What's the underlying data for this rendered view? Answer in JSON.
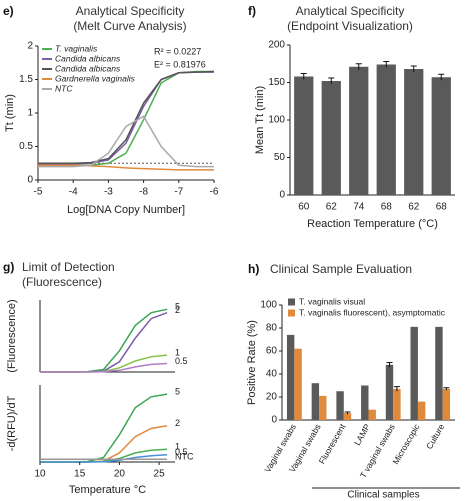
{
  "chart_data": [
    {
      "panel": "e)",
      "type": "line",
      "title": [
        "Analytical Specificity",
        "(Melt Curve Analysis)"
      ],
      "xlabel": "Log[DNA Copy Number]",
      "ylabel": "Tt (min)",
      "x": [
        0,
        0.5,
        1,
        1.5,
        2,
        2.5,
        3,
        3.5,
        4,
        4.5,
        5
      ],
      "xlim": [
        0,
        5
      ],
      "xticks": [
        {
          "value": 0,
          "label": "-5"
        },
        {
          "value": 1,
          "label": "-4"
        },
        {
          "value": 2,
          "label": "-3"
        },
        {
          "value": 3,
          "label": "-8"
        },
        {
          "value": 4,
          "label": "-7"
        },
        {
          "value": 5,
          "label": "-6"
        }
      ],
      "ylim": [
        0,
        2
      ],
      "yticks": [
        0,
        0.5,
        1,
        1.5,
        2
      ],
      "threshold": 0.25,
      "annotations": [
        "R² = 0.0227",
        "E² = 0.81976"
      ],
      "legend": "upper left",
      "series": [
        {
          "name": "T. vaginalis",
          "color": "#4caf50",
          "values": [
            0.22,
            0.22,
            0.22,
            0.22,
            0.25,
            0.4,
            0.9,
            1.45,
            1.6,
            1.62,
            1.62
          ]
        },
        {
          "name": "Candida albicans",
          "color": "#7b5ea7",
          "values": [
            0.24,
            0.24,
            0.24,
            0.25,
            0.3,
            0.55,
            1.1,
            1.5,
            1.6,
            1.61,
            1.61
          ]
        },
        {
          "name": "Candida albicans",
          "color": "#555555",
          "values": [
            0.25,
            0.25,
            0.25,
            0.26,
            0.32,
            0.6,
            1.15,
            1.5,
            1.6,
            1.61,
            1.62
          ]
        },
        {
          "name": "Gardnerella vaginalis",
          "color": "#e08a3c",
          "values": [
            0.22,
            0.22,
            0.22,
            0.21,
            0.2,
            0.18,
            0.17,
            0.16,
            0.15,
            0.15,
            0.15
          ]
        },
        {
          "name": "NTC",
          "color": "#aaaaaa",
          "values": [
            0.2,
            0.2,
            0.2,
            0.22,
            0.4,
            0.8,
            0.95,
            0.5,
            0.22,
            0.2,
            0.2
          ]
        }
      ]
    },
    {
      "panel": "f)",
      "type": "bar",
      "title": [
        "Analytical Specificity",
        "(Endpoint Visualization)"
      ],
      "xlabel": "Reaction Temperature (°C)",
      "ylabel": "Mean Tt (min)",
      "categories": [
        "60",
        "62",
        "74",
        "68",
        "62",
        "68"
      ],
      "series": [
        {
          "color": "#5a5a5a",
          "values": [
            158,
            152,
            171,
            174,
            168,
            157
          ],
          "errors": [
            4,
            4,
            4,
            4,
            4,
            4
          ]
        }
      ],
      "ylim": [
        0,
        200
      ],
      "yticks": [
        0,
        50,
        100,
        150,
        200
      ]
    },
    {
      "panel": "g)",
      "type": "line",
      "title": [
        "Limit of Detection",
        "(Fluorescence)"
      ],
      "xlabel": "Temperature °C",
      "x": [
        10,
        12,
        14,
        16,
        18,
        20,
        22,
        24,
        26
      ],
      "xlim": [
        10,
        27
      ],
      "xticks": [
        10,
        15,
        20,
        25
      ],
      "subplots": [
        {
          "ylabel": "(Fluorescence)",
          "ylim": [
            0,
            8.5
          ],
          "series": [
            {
              "name": "5",
              "color": "#3aa655",
              "values": [
                0,
                0,
                0,
                0.05,
                0.3,
                2.5,
                5.5,
                7,
                7.4
              ]
            },
            {
              "name": "2",
              "color": "#7b5ea7",
              "values": [
                0,
                0,
                0,
                0.02,
                0.1,
                1.2,
                4,
                6.3,
                7
              ]
            },
            {
              "name": "1",
              "color": "#8bc34a",
              "values": [
                0,
                0,
                0,
                0,
                0.05,
                0.5,
                1.3,
                1.8,
                2
              ]
            },
            {
              "name": "0.5",
              "color": "#b07cc6",
              "values": [
                0,
                0,
                0,
                0,
                0.02,
                0.2,
                0.6,
                0.9,
                1
              ]
            }
          ]
        },
        {
          "ylabel": "-d(RFU)/dT",
          "ylim": [
            0,
            8.5
          ],
          "series": [
            {
              "name": "5",
              "color": "#3aa655",
              "values": [
                0,
                0,
                0,
                0.05,
                0.5,
                3,
                6,
                7.2,
                7.5
              ]
            },
            {
              "name": "2",
              "color": "#e08a3c",
              "values": [
                0,
                0,
                0,
                0,
                0.1,
                1,
                2.8,
                3.7,
                4
              ]
            },
            {
              "name": "1",
              "color": "#4caf50",
              "values": [
                0,
                0,
                0,
                0,
                0.05,
                0.4,
                1,
                1.3,
                1.4
              ]
            },
            {
              "name": "0.5",
              "color": "#4a90d9",
              "values": [
                0,
                0,
                0,
                0,
                0.02,
                0.2,
                0.5,
                0.7,
                0.8
              ]
            },
            {
              "name": "NTC",
              "color": "#999999",
              "values": [
                0.3,
                0.3,
                0.3,
                0.3,
                0.3,
                0.3,
                0.3,
                0.3,
                0.3
              ]
            }
          ]
        }
      ]
    },
    {
      "panel": "h)",
      "type": "bar",
      "title": [
        "Clinical Sample Evaluation"
      ],
      "xlabel": "Clinical samples",
      "ylabel": "Positive Rate (%)",
      "categories": [
        "Vaginal swabs",
        "Vaginal swabs",
        "Fluorescent",
        "LAMP",
        "T vaginal swabs",
        "Microscopic",
        "Culture"
      ],
      "ylim": [
        0,
        100
      ],
      "yticks": [
        0,
        20,
        40,
        60,
        80,
        100
      ],
      "legend": "upper left",
      "series": [
        {
          "name": "T. vaginalis visual",
          "color": "#5a5a5a",
          "values": [
            74,
            32,
            25,
            30,
            48,
            81,
            81
          ],
          "errors": [
            0,
            0,
            0,
            0,
            2,
            0,
            0
          ]
        },
        {
          "name": "T. vaginalis fluorescent), asymptomatic",
          "color": "#e08a3c",
          "values": [
            62,
            21,
            6,
            9,
            27,
            16,
            27
          ],
          "errors": [
            0,
            0,
            1,
            0,
            2,
            0,
            1
          ]
        }
      ]
    }
  ]
}
